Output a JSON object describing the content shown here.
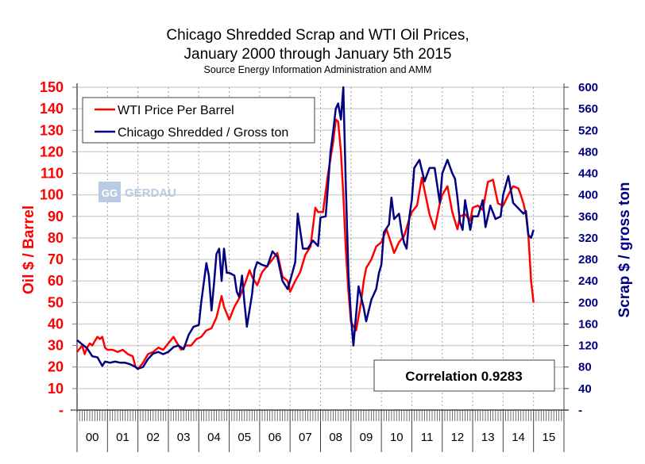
{
  "chart_data": {
    "type": "line",
    "title": "Chicago Shredded Scrap and WTI Oil Prices,",
    "title_line2": "January 2000 through January 5th 2015",
    "subtitle": "Source Energy Information Administration and AMM",
    "ylabel_left": "Oil $ / Barrel",
    "ylabel_right": "Scrap $ / gross ton",
    "xlabel": "",
    "ylim_left": [
      0,
      150
    ],
    "ylim_right": [
      0,
      600
    ],
    "yticks_left": [
      "-",
      "10",
      "20",
      "30",
      "40",
      "50",
      "60",
      "70",
      "80",
      "90",
      "100",
      "110",
      "120",
      "130",
      "140",
      "150"
    ],
    "yticks_right": [
      "-",
      "40",
      "80",
      "120",
      "160",
      "200",
      "240",
      "280",
      "320",
      "360",
      "400",
      "440",
      "480",
      "520",
      "560",
      "600"
    ],
    "x_categories": [
      "00",
      "01",
      "02",
      "03",
      "04",
      "05",
      "06",
      "07",
      "08",
      "09",
      "10",
      "11",
      "12",
      "13",
      "14",
      "15"
    ],
    "x_range_years": [
      2000,
      2016
    ],
    "grid": true,
    "legend_position": "top-left",
    "annotation": "Correlation 0.9283",
    "watermark": "GERDAU",
    "series": [
      {
        "name": "WTI Price Per Barrel",
        "axis": "left",
        "color": "#ff0000",
        "x": [
          2000.0,
          2000.17,
          2000.25,
          2000.33,
          2000.42,
          2000.5,
          2000.58,
          2000.67,
          2000.75,
          2000.83,
          2000.92,
          2001.0,
          2001.17,
          2001.33,
          2001.5,
          2001.67,
          2001.83,
          2001.92,
          2002.0,
          2002.17,
          2002.33,
          2002.5,
          2002.67,
          2002.83,
          2003.0,
          2003.17,
          2003.25,
          2003.42,
          2003.58,
          2003.75,
          2003.92,
          2004.08,
          2004.25,
          2004.42,
          2004.58,
          2004.75,
          2004.83,
          2005.0,
          2005.17,
          2005.33,
          2005.5,
          2005.67,
          2005.75,
          2005.92,
          2006.08,
          2006.25,
          2006.42,
          2006.58,
          2006.75,
          2006.92,
          2007.0,
          2007.17,
          2007.33,
          2007.5,
          2007.67,
          2007.83,
          2007.92,
          2008.08,
          2008.25,
          2008.42,
          2008.5,
          2008.58,
          2008.67,
          2008.75,
          2008.83,
          2008.92,
          2009.0,
          2009.17,
          2009.33,
          2009.42,
          2009.5,
          2009.67,
          2009.83,
          2010.0,
          2010.17,
          2010.33,
          2010.42,
          2010.58,
          2010.75,
          2010.92,
          2011.0,
          2011.17,
          2011.33,
          2011.42,
          2011.58,
          2011.75,
          2011.92,
          2012.0,
          2012.17,
          2012.33,
          2012.5,
          2012.58,
          2012.75,
          2012.92,
          2013.0,
          2013.17,
          2013.33,
          2013.5,
          2013.67,
          2013.83,
          2014.0,
          2014.17,
          2014.33,
          2014.5,
          2014.58,
          2014.67,
          2014.75,
          2014.83,
          2014.92,
          2015.0
        ],
        "values": [
          27,
          30,
          26,
          29,
          31,
          30,
          32,
          34,
          33,
          34,
          29,
          28,
          28,
          27,
          28,
          26,
          25,
          20,
          19,
          22,
          26,
          27,
          29,
          28,
          31,
          34,
          32,
          28,
          30,
          30,
          33,
          34,
          37,
          38,
          43,
          53,
          48,
          42,
          48,
          52,
          58,
          65,
          62,
          58,
          64,
          67,
          70,
          73,
          62,
          60,
          55,
          60,
          64,
          72,
          76,
          94,
          92,
          92,
          110,
          125,
          135,
          134,
          120,
          100,
          75,
          55,
          41,
          37,
          50,
          60,
          66,
          70,
          76,
          78,
          84,
          77,
          73,
          78,
          81,
          89,
          92,
          95,
          108,
          102,
          91,
          84,
          96,
          100,
          104,
          92,
          84,
          90,
          91,
          88,
          94,
          95,
          93,
          106,
          107,
          96,
          95,
          100,
          104,
          103,
          100,
          96,
          91,
          81,
          60,
          50
        ]
      },
      {
        "name": "Chicago Shredded / Gross ton",
        "axis": "right",
        "color": "#000080",
        "x": [
          2000.0,
          2000.17,
          2000.33,
          2000.5,
          2000.67,
          2000.83,
          2000.92,
          2001.08,
          2001.25,
          2001.42,
          2001.58,
          2001.75,
          2001.92,
          2002.0,
          2002.17,
          2002.33,
          2002.5,
          2002.67,
          2002.83,
          2003.0,
          2003.17,
          2003.33,
          2003.5,
          2003.67,
          2003.83,
          2004.0,
          2004.08,
          2004.25,
          2004.33,
          2004.42,
          2004.5,
          2004.58,
          2004.67,
          2004.75,
          2004.83,
          2004.92,
          2005.0,
          2005.17,
          2005.25,
          2005.33,
          2005.42,
          2005.5,
          2005.58,
          2005.75,
          2005.83,
          2005.92,
          2006.08,
          2006.25,
          2006.42,
          2006.58,
          2006.75,
          2006.92,
          2007.0,
          2007.17,
          2007.25,
          2007.42,
          2007.58,
          2007.75,
          2007.92,
          2008.0,
          2008.17,
          2008.25,
          2008.33,
          2008.42,
          2008.5,
          2008.58,
          2008.67,
          2008.75,
          2008.83,
          2008.92,
          2009.0,
          2009.08,
          2009.25,
          2009.42,
          2009.5,
          2009.67,
          2009.83,
          2009.92,
          2010.0,
          2010.08,
          2010.25,
          2010.33,
          2010.42,
          2010.58,
          2010.67,
          2010.75,
          2010.83,
          2010.92,
          2011.0,
          2011.08,
          2011.25,
          2011.42,
          2011.58,
          2011.75,
          2011.92,
          2012.0,
          2012.17,
          2012.33,
          2012.42,
          2012.5,
          2012.58,
          2012.67,
          2012.75,
          2012.92,
          2013.0,
          2013.17,
          2013.33,
          2013.42,
          2013.58,
          2013.75,
          2013.92,
          2014.0,
          2014.17,
          2014.33,
          2014.5,
          2014.67,
          2014.75,
          2014.83,
          2014.92,
          2015.0
        ],
        "values": [
          130,
          122,
          115,
          100,
          98,
          82,
          90,
          88,
          90,
          88,
          88,
          85,
          80,
          77,
          80,
          95,
          105,
          108,
          104,
          108,
          117,
          120,
          113,
          140,
          155,
          158,
          200,
          273,
          250,
          185,
          235,
          290,
          300,
          240,
          300,
          255,
          255,
          250,
          220,
          210,
          250,
          200,
          155,
          215,
          260,
          275,
          270,
          267,
          295,
          285,
          240,
          225,
          240,
          275,
          365,
          300,
          300,
          315,
          305,
          358,
          360,
          420,
          480,
          520,
          560,
          570,
          540,
          600,
          420,
          250,
          175,
          120,
          230,
          190,
          165,
          205,
          225,
          255,
          270,
          330,
          345,
          395,
          355,
          365,
          330,
          310,
          300,
          360,
          390,
          450,
          465,
          425,
          450,
          450,
          385,
          440,
          465,
          440,
          430,
          395,
          350,
          335,
          390,
          335,
          360,
          360,
          390,
          340,
          380,
          355,
          360,
          400,
          435,
          385,
          375,
          365,
          370,
          325,
          320,
          335
        ]
      }
    ]
  }
}
